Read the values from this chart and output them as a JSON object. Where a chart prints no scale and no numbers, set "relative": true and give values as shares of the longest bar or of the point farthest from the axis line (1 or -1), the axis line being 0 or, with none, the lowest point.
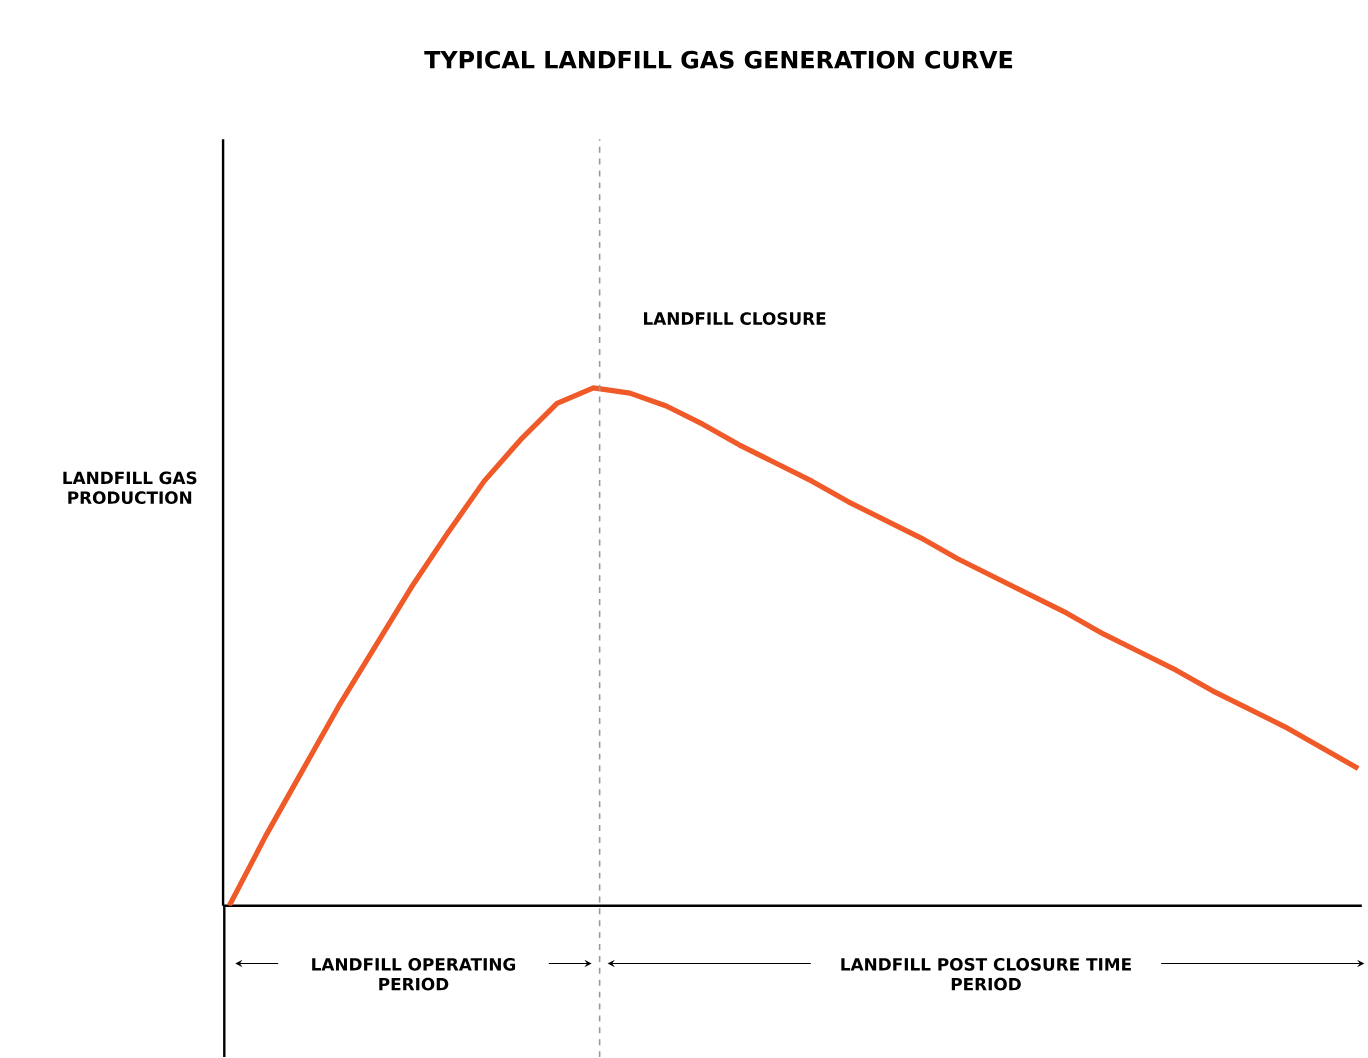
{
  "chart_data": {
    "type": "line",
    "title": "TYPICAL LANDFILL GAS GENERATION CURVE",
    "ylabel": "LANDFILL GAS PRODUCTION",
    "relative": true,
    "categories": [
      null,
      null,
      null,
      null,
      null,
      null,
      null,
      null,
      null,
      null,
      null,
      null,
      null,
      null,
      null,
      null,
      null,
      null,
      null,
      null,
      null,
      null,
      null,
      null,
      null,
      null,
      null,
      null,
      null,
      null,
      null,
      null
    ],
    "values": [
      0,
      0.135,
      0.26,
      0.385,
      0.5,
      0.615,
      0.72,
      0.82,
      0.9,
      0.97,
      1,
      0.99,
      0.965,
      0.93,
      0.89,
      0.855,
      0.82,
      0.78,
      0.745,
      0.71,
      0.67,
      0.635,
      0.6,
      0.565,
      0.525,
      0.49,
      0.455,
      0.415,
      0.38,
      0.345,
      0.305,
      0.265
    ],
    "color": "#f05a28",
    "annotations": [
      "LANDFILL CLOSURE",
      "LANDFILL OPERATING PERIOD",
      "LANDFILL POST CLOSURE TIME PERIOD"
    ]
  }
}
